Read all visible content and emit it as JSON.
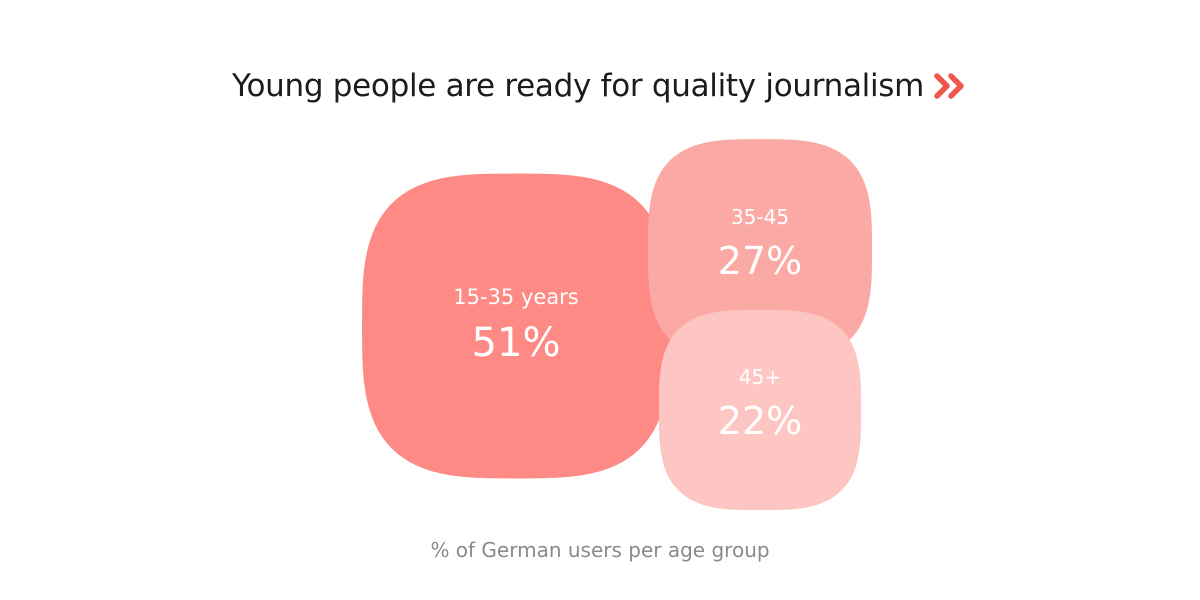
{
  "title": "Young people are ready for quality journalism",
  "title_icon": "double-chevron-right-icon",
  "accent_color": "#f0574c",
  "caption": "% of German users per age group",
  "chart_data": {
    "type": "bubble",
    "unit": "%",
    "items": [
      {
        "label": "15-35 years",
        "value": 51,
        "value_label": "51%",
        "color": "#fd8a84"
      },
      {
        "label": "35-45",
        "value": 27,
        "value_label": "27%",
        "color": "#fba9a5"
      },
      {
        "label": "45+",
        "value": 22,
        "value_label": "22%",
        "color": "#fdc6c3"
      }
    ]
  }
}
